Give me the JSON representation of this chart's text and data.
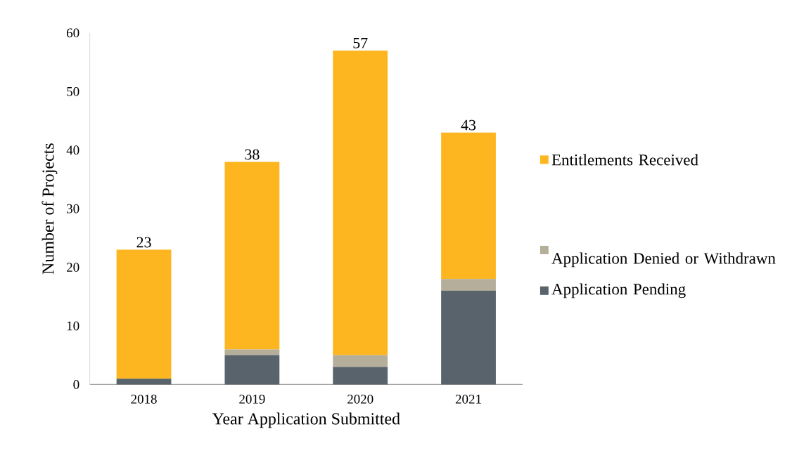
{
  "chart_data": {
    "type": "bar",
    "stacked": true,
    "xlabel": "Year Application Submitted",
    "ylabel": "Number of Projects",
    "categories": [
      "2018",
      "2019",
      "2020",
      "2021"
    ],
    "series": [
      {
        "name": "Application Pending",
        "color": "#58636b",
        "values": [
          1,
          5,
          3,
          16
        ]
      },
      {
        "name": "Application Denied or Withdrawn",
        "color": "#b5ae9b",
        "values": [
          0,
          1,
          2,
          2
        ]
      },
      {
        "name": "Entitlements Received",
        "color": "#fdb61f",
        "values": [
          22,
          32,
          52,
          25
        ]
      }
    ],
    "totals": [
      "23",
      "38",
      "57",
      "43"
    ],
    "ylim": [
      0,
      60
    ],
    "yticks": [
      0,
      10,
      20,
      30,
      40,
      50,
      60
    ],
    "grid": false,
    "legend": "right"
  }
}
